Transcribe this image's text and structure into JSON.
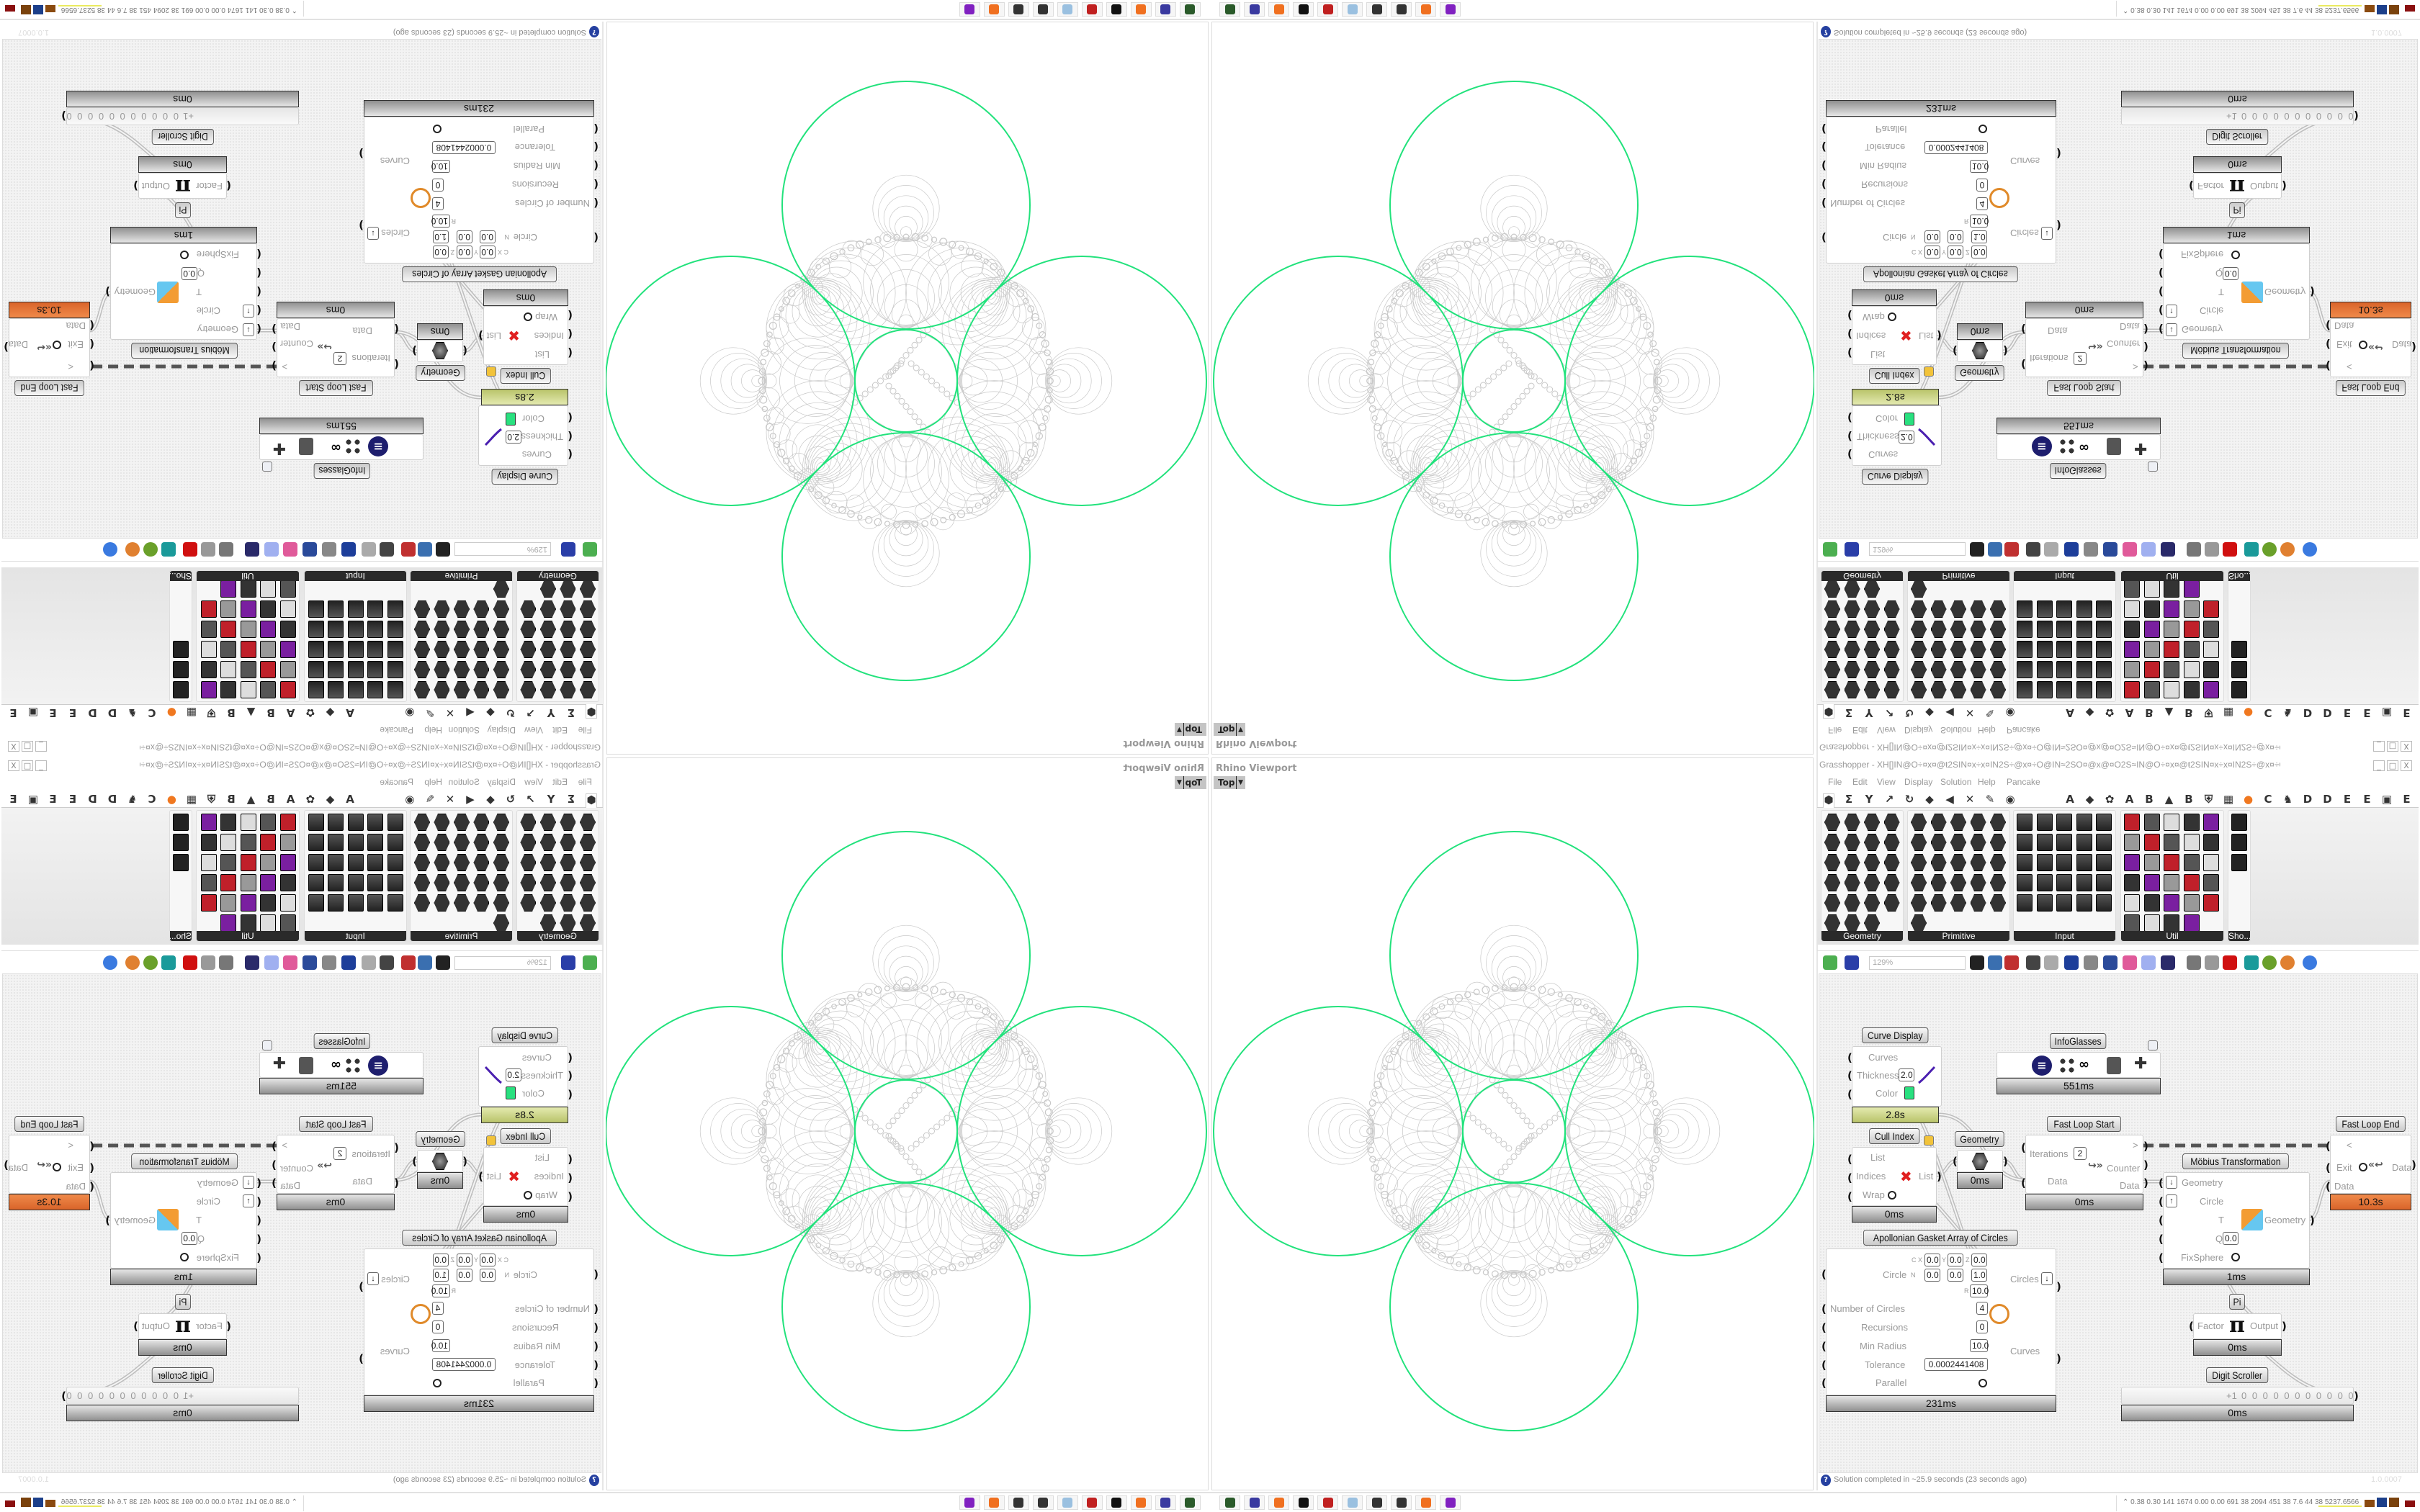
{
  "viewport": {
    "title": "Rhino Viewport",
    "view": "Top",
    "colors": {
      "outer_circles": "#22e27c",
      "gasket_circles": "#c8c8c8"
    }
  },
  "grasshopper": {
    "title": "Grasshopper - XH[]IN@O÷¤x¤@ŧ2SIN¤x÷x¤IN2S÷@x¤÷O@IN≈2SO¤@x@¤O2S≈IN@O÷¤x¤@ŧ2SIN¤x÷x¤IN2S÷@x¤÷O@IN*",
    "window_buttons": [
      "_",
      "□",
      "X"
    ],
    "menu": [
      "File",
      "Edit",
      "View",
      "Display",
      "Solution",
      "Help",
      "Pancake"
    ],
    "tab_icons": [
      "hexagon-tab-icon",
      "sigma-tab-icon",
      "vector-tab-icon",
      "curve-arrow-tab-icon",
      "hook-tab-icon",
      "surface-tab-icon",
      "mesh-tab-icon",
      "intersect-tab-icon",
      "transform-tab-icon",
      "display-eye-tab-icon"
    ],
    "tab_letters": [
      "A",
      "◆",
      "✿",
      "A",
      "B",
      "▲",
      "B",
      "⛨",
      "▦",
      "●",
      "C",
      "♞",
      "D",
      "D",
      "E",
      "E",
      "▣",
      "E"
    ],
    "panels": [
      {
        "label": "Geometry",
        "icons": [
          "box-icon",
          "line-icon",
          "plane-icon",
          "spiral-icon",
          "point-icon",
          "rectangle-icon",
          "surface-icon",
          "vector-icon",
          "arrow-icon",
          "polyline-icon",
          "text-icon",
          "curve-icon",
          "circle-icon",
          "cube-icon",
          "brep-icon",
          "mesh-icon",
          "arc-icon",
          "sphere-icon",
          "cylinder-icon",
          "group-icon",
          "field-icon",
          "lattice-icon",
          "magnet-icon"
        ]
      },
      {
        "label": "Primitive",
        "icons": [
          "boolean-icon",
          "star-icon",
          "matrix-icon",
          "domain-icon",
          "path-icon",
          "shape-icon",
          "stripes-icon",
          "time-icon",
          "image-icon",
          "culture-icon",
          "scissors-icon",
          "unicode-icon",
          "hex-grid-icon",
          "file-icon",
          "integer-icon",
          "tree-icon",
          "bug-icon",
          "shader-icon",
          "number-icon",
          "hash-icon",
          "complex-icon",
          "doc-icon",
          "string-icon",
          "id-icon",
          "material-icon",
          "shape-arc-icon"
        ]
      },
      {
        "label": "Input",
        "icons": [
          "import-icon",
          "panel-icon",
          "colour-wheel-icon",
          "3dm-icon",
          "glasses-icon",
          "graph-icon",
          "gumball-icon",
          "t-icon",
          "xyz-icon",
          "toggle-icon",
          "gradient-icon",
          "swatch-icon",
          "img-icon",
          "button-icon",
          "checker-icon",
          "curve-graph-icon",
          "pdb-icon",
          "text-ui-icon",
          "date-icon",
          "dial-icon",
          "shp-icon",
          "list-icon",
          "clock-icon",
          "palette-icon",
          "id-tag-icon"
        ]
      },
      {
        "label": "Util",
        "icons": [
          "cherry-icon",
          "magnet-icon",
          "arrow-right-icon",
          "c-icon",
          "a-icon",
          "play-icon",
          "record-icon",
          "search-icon",
          "spiral-icon",
          "cd-icon",
          "axes-icon",
          "pencil-icon",
          "timer-icon",
          "seven-icon",
          "flask-icon",
          "tree-icon",
          "pick-icon",
          "egg-icon",
          "key-icon",
          "fx-icon",
          "blob-icon",
          "refresh-icon",
          "pr-icon",
          "zero-one-icon",
          "paint-icon",
          "abc-icon",
          "arrow-icon",
          "gauge-icon",
          "x-icon"
        ]
      },
      {
        "label": "Sho...",
        "icons": [
          "glasses-icon",
          "glasses-alt-icon",
          "presentation-icon"
        ]
      }
    ],
    "toolbar": {
      "zoom": "129%",
      "icons": [
        "new-file-icon",
        "save-icon",
        "zoom-extents-icon",
        "preview-eye-icon",
        "sketch-icon",
        "unplug-icon",
        "at-icon",
        "gha-icon",
        "canvas-icon",
        "search-icon",
        "package-icon",
        "bulb-icon",
        "wires-icon",
        "preview-shaded-icon",
        "wireframe-icon",
        "red-solid-icon",
        "teal-icon",
        "green-icon",
        "orange-sphere-icon",
        "blue-sphere-icon"
      ]
    },
    "components": {
      "curve_display": {
        "label": "Curve Display",
        "inputs": [
          "Curves",
          "Thickness",
          "Color"
        ],
        "thickness": "2.0",
        "color": "#29e07f",
        "time": "2.8s"
      },
      "info_glasses": {
        "label": "InfoGlasses",
        "icons": [
          "list-circle-icon",
          "grid-icon",
          "glasses-icon",
          "cabinet-icon",
          "puzzle-icon"
        ],
        "time": "551ms"
      },
      "cull_index": {
        "label": "Cull Index",
        "inputs": [
          "List",
          "Indices",
          "Wrap"
        ],
        "output": "List",
        "time": "0ms"
      },
      "geometry": {
        "label": "Geometry",
        "time": "0ms"
      },
      "fast_loop_start": {
        "label": "Fast Loop Start",
        "iterations_label": "Iterations",
        "iterations": "2",
        "inputs": [
          "Data"
        ],
        "outputs": [
          ">",
          "Counter",
          "Data"
        ],
        "time": "0ms"
      },
      "fast_loop_end": {
        "label": "Fast Loop End",
        "inputs": [
          "<",
          "Exit",
          "Data"
        ],
        "output": "Data",
        "time": "10.3s"
      },
      "mobius": {
        "label": "Möbius Transformation",
        "inputs": [
          "Geometry",
          "Circle",
          "T",
          "Q",
          "FixSphere"
        ],
        "q": "0.0",
        "output": "Geometry",
        "time": "1ms"
      },
      "apollonian": {
        "label": "Apollonian Gasket Array of Circles",
        "circle_label": "Circle",
        "c": {
          "x": "0.0",
          "y": "0.0",
          "z": "0.0"
        },
        "n": {
          "x": "0.0",
          "y": "0.0",
          "z": "1.0"
        },
        "r": "10.0",
        "axis": {
          "c": "C",
          "n": "N",
          "r": "R",
          "x": "X",
          "y": "Y",
          "z": "Z"
        },
        "inputs": [
          "Number of Circles",
          "Recursions",
          "Min Radius",
          "Tolerance",
          "Parallel"
        ],
        "values": [
          "4",
          "0",
          "10.0",
          "0.0002441408"
        ],
        "outputs": [
          "Circles",
          "Curves"
        ],
        "time": "231ms"
      },
      "pi": {
        "label": "Pi",
        "input": "Factor",
        "symbol": "π",
        "output": "Output",
        "time": "0ms"
      },
      "digit_scroller": {
        "label": "Digit Scroller",
        "prefix": "+1",
        "digits": "0 0 0 0 0 0 0 0 0 0 0",
        "time": "0ms"
      }
    },
    "timer_colors": {
      "normal": "#a8a8a8",
      "display": "#b9c36a",
      "slow": "#d9642a"
    },
    "status": "Solution completed in ~25.9 seconds (23 seconds ago)",
    "version": "1.0.0007"
  },
  "taskbar": {
    "icons": [
      "task-manager-icon",
      "floppy-64-icon",
      "firefox-icon",
      "rhino-icon",
      "red-skull-app-icon",
      "notepad-icon",
      "maze-icon",
      "maze-alt-icon",
      "firefox-alt-icon",
      "purple-app-icon"
    ],
    "stats": "0.38 0.30  141  1674 0.00 0.00  691   38  2094  451   38   7.6   44   38  5237.6566"
  }
}
